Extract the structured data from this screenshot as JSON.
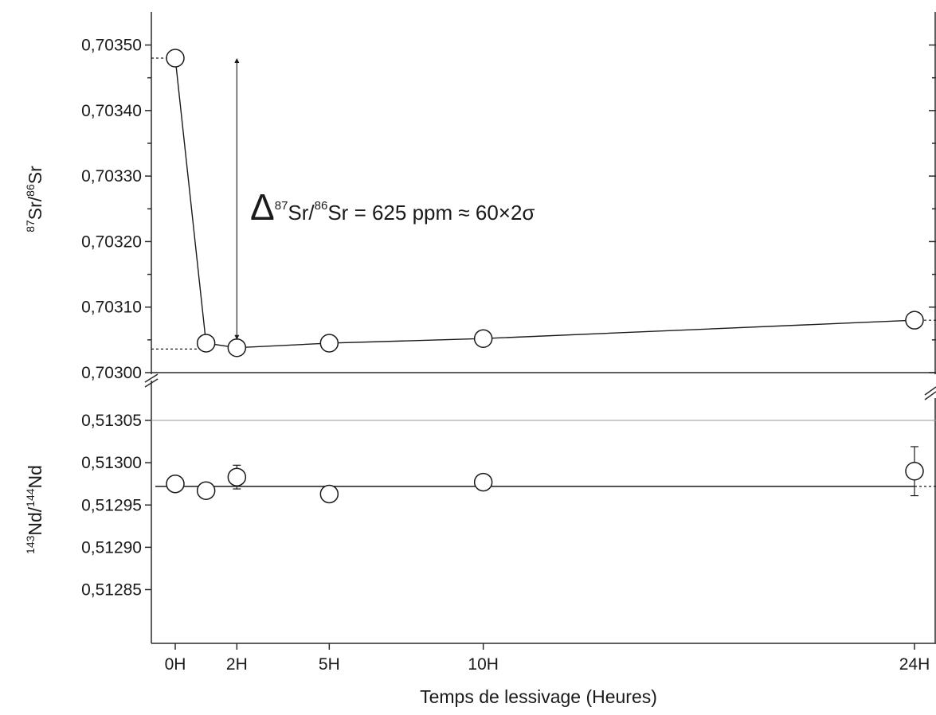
{
  "chart_data": [
    {
      "panel": "top",
      "type": "scatter",
      "ylabel": {
        "sup1": "87",
        "base1": "Sr/",
        "sup2": "86",
        "base2": "Sr"
      },
      "ylim": [
        0.703,
        0.7035
      ],
      "yticks": [
        0.703,
        0.7031,
        0.7032,
        0.7033,
        0.7034,
        0.7035
      ],
      "ytick_labels": [
        "0,70300",
        "0,70310",
        "0,70320",
        "0,70330",
        "0,70340",
        "0,70350"
      ],
      "points": [
        {
          "x": 0,
          "y": 0.70348
        },
        {
          "x": 1,
          "y": 0.703045
        },
        {
          "x": 2,
          "y": 0.703038
        },
        {
          "x": 5,
          "y": 0.703045
        },
        {
          "x": 10,
          "y": 0.703052
        },
        {
          "x": 24,
          "y": 0.70308
        }
      ],
      "dashed_refs": [
        {
          "y": 0.70348,
          "from": "axis",
          "to_x": 0
        },
        {
          "y": 0.703036,
          "from": "axis",
          "to_x": 1
        },
        {
          "y": 0.70308,
          "from_x": 24,
          "to": "right"
        }
      ],
      "arrow": {
        "x": 2,
        "y_from": 0.703038,
        "y_to": 0.70348
      },
      "annotation": {
        "delta": "Δ",
        "sup1": "87",
        "base1": "Sr/",
        "sup2": "86",
        "base2": "Sr = 625 ppm ≈ 60×2σ"
      },
      "grid": false
    },
    {
      "panel": "bottom",
      "type": "scatter",
      "ylabel": {
        "sup1": "143",
        "base1": "Nd/",
        "sup2": "144",
        "base2": "Nd"
      },
      "ylim": [
        0.5128,
        0.51306
      ],
      "yticks": [
        0.51285,
        0.5129,
        0.51295,
        0.513,
        0.51305
      ],
      "ytick_labels": [
        "0,51285",
        "0,51290",
        "0,51295",
        "0,51300",
        "0,51305"
      ],
      "points": [
        {
          "x": 0,
          "y": 0.512975
        },
        {
          "x": 1,
          "y": 0.512967
        },
        {
          "x": 2,
          "y": 0.512983,
          "err": 1.4e-05
        },
        {
          "x": 5,
          "y": 0.512963
        },
        {
          "x": 10,
          "y": 0.512977
        },
        {
          "x": 24,
          "y": 0.51299,
          "err": 2.9e-05
        }
      ],
      "mean_line": 0.512972,
      "gridline_at": 0.51305,
      "grid": false
    }
  ],
  "xaxis": {
    "label": "Temps de lessivage (Heures)",
    "xlim": [
      -0.8,
      24.8
    ],
    "ticks": [
      0,
      2,
      5,
      10,
      24
    ],
    "tick_labels": [
      "0H",
      "2H",
      "5H",
      "10H",
      "24H"
    ]
  }
}
